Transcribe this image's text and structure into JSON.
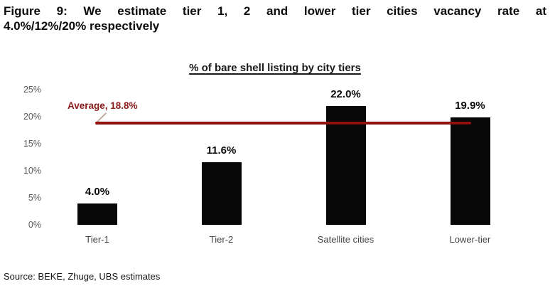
{
  "figure": {
    "title_line1": "Figure 9: We estimate tier 1, 2 and lower tier cities vacancy rate at",
    "title_line2": "4.0%/12%/20% respectively",
    "source": "Source: BEKE, Zhuge, UBS estimates"
  },
  "chart_data": {
    "type": "bar",
    "title": "% of bare shell listing by city tiers",
    "categories": [
      "Tier-1",
      "Tier-2",
      "Satellite cities",
      "Lower-tier"
    ],
    "values": [
      4.0,
      11.6,
      22.0,
      19.9
    ],
    "value_labels": [
      "4.0%",
      "11.6%",
      "22.0%",
      "19.9%"
    ],
    "average": {
      "label": "Average, 18.8%",
      "value": 18.8
    },
    "y_ticks": {
      "labels": [
        "0%",
        "5%",
        "10%",
        "15%",
        "20%",
        "25%"
      ],
      "values": [
        0,
        5,
        10,
        15,
        20,
        25
      ]
    },
    "ylim": [
      0,
      25
    ],
    "xlabel": "",
    "ylabel": "",
    "grid": false,
    "legend": false,
    "bar_color": "#070707",
    "average_line_color": "#9a1212",
    "average_label_color": "#8b1a1a",
    "tick_color": "#595959"
  }
}
